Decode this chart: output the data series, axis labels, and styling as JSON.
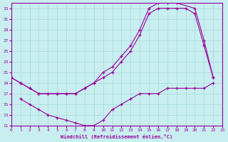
{
  "xlabel": "Windchill (Refroidissement éolien,°C)",
  "bg_color": "#c8eef0",
  "grid_color": "#a8d8dc",
  "line_color": "#990099",
  "xlim": [
    0,
    23
  ],
  "ylim": [
    11,
    34
  ],
  "xticks": [
    0,
    1,
    2,
    3,
    4,
    5,
    6,
    7,
    8,
    9,
    10,
    11,
    12,
    13,
    14,
    15,
    16,
    17,
    18,
    19,
    20,
    21,
    22,
    23
  ],
  "yticks": [
    11,
    13,
    15,
    17,
    19,
    21,
    23,
    25,
    27,
    29,
    31,
    33
  ],
  "curve1_x": [
    0,
    1,
    2,
    3,
    4,
    5,
    6,
    7,
    8,
    9,
    10,
    11,
    12,
    13,
    14,
    15,
    16,
    17,
    18,
    20,
    21,
    22
  ],
  "curve1_y": [
    20,
    19,
    18,
    17,
    17,
    17,
    17,
    17,
    18,
    19,
    21,
    22,
    24,
    26,
    29,
    33,
    34,
    34,
    34,
    33,
    27,
    20
  ],
  "curve2_x": [
    0,
    1,
    2,
    3,
    4,
    5,
    6,
    7,
    8,
    9,
    10,
    11,
    12,
    13,
    14,
    15,
    16,
    17,
    18,
    19,
    20,
    21,
    22
  ],
  "curve2_y": [
    20,
    19,
    18,
    17,
    17,
    17,
    17,
    17,
    18,
    19,
    20,
    21,
    23,
    25,
    28,
    32,
    33,
    33,
    33,
    33,
    32,
    26,
    20
  ],
  "curve3_x": [
    1,
    2,
    3,
    4,
    5,
    6,
    7,
    8,
    9,
    10,
    11,
    12,
    13,
    14,
    15,
    16,
    17,
    18,
    19,
    20,
    21,
    22
  ],
  "curve3_y": [
    16,
    15,
    14,
    13,
    12.5,
    12,
    11.5,
    11,
    11,
    12,
    14,
    15,
    16,
    17,
    17,
    17,
    18,
    18,
    18,
    18,
    18,
    19
  ]
}
